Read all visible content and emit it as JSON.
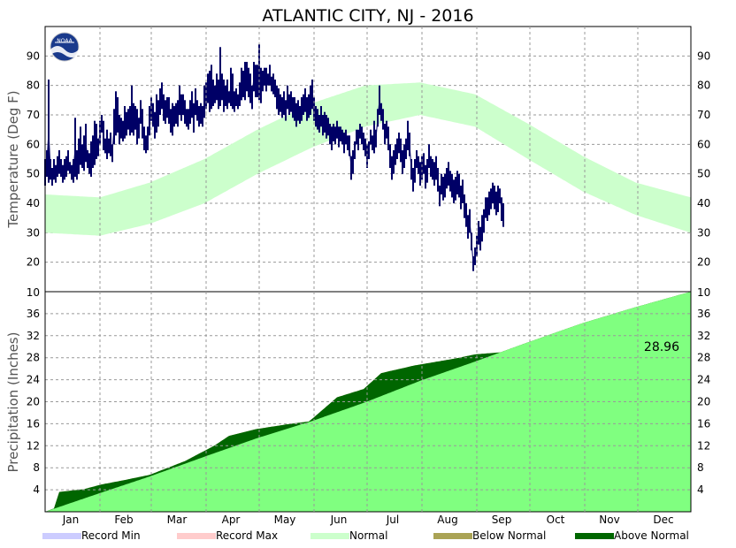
{
  "chart_data": {
    "title": "ATLANTIC CITY, NJ - 2016",
    "type": "line",
    "months": [
      "Jan",
      "Feb",
      "Mar",
      "Apr",
      "May",
      "Jun",
      "Jul",
      "Aug",
      "Sep",
      "Oct",
      "Nov",
      "Dec"
    ],
    "month_days": [
      31,
      29,
      31,
      30,
      31,
      30,
      31,
      31,
      30,
      31,
      30,
      31
    ],
    "colors": {
      "record_min": "#ccccff",
      "record_max": "#ffcccc",
      "normal": "#ccffcc",
      "below_normal": "#aaa355",
      "above_normal": "#006600",
      "observed_temp": "#000066",
      "precip_normal_fill": "#80ff80",
      "grid": "#999999"
    },
    "temperature_panel": {
      "ylabel": "Temperature (Deg F)",
      "ylim": [
        10,
        100
      ],
      "yticks": [
        20,
        30,
        40,
        50,
        60,
        70,
        80,
        90
      ],
      "normal_band": {
        "doy": [
          1,
          32,
          60,
          91,
          121,
          152,
          182,
          213,
          244,
          274,
          305,
          335,
          366
        ],
        "low": [
          30,
          29,
          33,
          40,
          50,
          59,
          66,
          70,
          66,
          55,
          44,
          36,
          30
        ],
        "high": [
          43,
          42,
          47,
          55,
          65,
          74,
          80,
          81,
          77,
          67,
          56,
          47,
          42
        ]
      },
      "observed_daily_range": [
        [
          1,
          46,
          55
        ],
        [
          2,
          49,
          58
        ],
        [
          3,
          47,
          82
        ],
        [
          4,
          48,
          55
        ],
        [
          5,
          46,
          52
        ],
        [
          6,
          48,
          55
        ],
        [
          7,
          47,
          53
        ],
        [
          8,
          49,
          56
        ],
        [
          9,
          50,
          58
        ],
        [
          10,
          49,
          55
        ],
        [
          11,
          47,
          53
        ],
        [
          12,
          48,
          55
        ],
        [
          13,
          49,
          56
        ],
        [
          14,
          51,
          58
        ],
        [
          15,
          50,
          54
        ],
        [
          16,
          48,
          53
        ],
        [
          17,
          47,
          55
        ],
        [
          18,
          49,
          69
        ],
        [
          19,
          48,
          58
        ],
        [
          20,
          50,
          62
        ],
        [
          21,
          53,
          66
        ],
        [
          22,
          52,
          60
        ],
        [
          23,
          51,
          63
        ],
        [
          24,
          54,
          67
        ],
        [
          25,
          52,
          58
        ],
        [
          26,
          50,
          57
        ],
        [
          27,
          49,
          61
        ],
        [
          28,
          52,
          63
        ],
        [
          29,
          53,
          68
        ],
        [
          30,
          55,
          67
        ],
        [
          31,
          56,
          62
        ],
        [
          32,
          60,
          68
        ],
        [
          33,
          64,
          70
        ],
        [
          34,
          58,
          68
        ],
        [
          35,
          57,
          62
        ],
        [
          36,
          55,
          65
        ],
        [
          37,
          57,
          62
        ],
        [
          38,
          56,
          64
        ],
        [
          39,
          54,
          60
        ],
        [
          40,
          60,
          72
        ],
        [
          41,
          63,
          78
        ],
        [
          42,
          64,
          76
        ],
        [
          43,
          60,
          70
        ],
        [
          44,
          62,
          69
        ],
        [
          45,
          61,
          68
        ],
        [
          46,
          62,
          73
        ],
        [
          47,
          63,
          71
        ],
        [
          48,
          65,
          72
        ],
        [
          49,
          63,
          73
        ],
        [
          50,
          64,
          80
        ],
        [
          51,
          63,
          74
        ],
        [
          52,
          65,
          73
        ],
        [
          53,
          60,
          72
        ],
        [
          54,
          62,
          69
        ],
        [
          55,
          67,
          75
        ],
        [
          56,
          62,
          72
        ],
        [
          57,
          58,
          66
        ],
        [
          58,
          57,
          63
        ],
        [
          59,
          58,
          66
        ],
        [
          60,
          63,
          73
        ],
        [
          61,
          68,
          76
        ],
        [
          62,
          66,
          74
        ],
        [
          63,
          62,
          71
        ],
        [
          64,
          64,
          77
        ],
        [
          65,
          66,
          75
        ],
        [
          66,
          70,
          79
        ],
        [
          67,
          72,
          81
        ],
        [
          68,
          68,
          77
        ],
        [
          69,
          67,
          75
        ],
        [
          70,
          69,
          76
        ],
        [
          71,
          67,
          76
        ],
        [
          72,
          64,
          72
        ],
        [
          73,
          63,
          74
        ],
        [
          74,
          66,
          73
        ],
        [
          75,
          67,
          74
        ],
        [
          76,
          66,
          75
        ],
        [
          77,
          70,
          80
        ],
        [
          78,
          68,
          77
        ],
        [
          79,
          70,
          77
        ],
        [
          80,
          67,
          75
        ],
        [
          81,
          66,
          72
        ],
        [
          82,
          65,
          72
        ],
        [
          83,
          67,
          75
        ],
        [
          84,
          69,
          78
        ],
        [
          85,
          64,
          74
        ],
        [
          86,
          70,
          79
        ],
        [
          87,
          68,
          75
        ],
        [
          88,
          66,
          73
        ],
        [
          89,
          67,
          74
        ],
        [
          90,
          66,
          73
        ],
        [
          91,
          69,
          80
        ],
        [
          92,
          72,
          81
        ],
        [
          93,
          74,
          84
        ],
        [
          94,
          71,
          85
        ],
        [
          95,
          72,
          87
        ],
        [
          96,
          73,
          82
        ],
        [
          97,
          74,
          80
        ],
        [
          98,
          75,
          84
        ],
        [
          99,
          72,
          82
        ],
        [
          100,
          73,
          93
        ],
        [
          101,
          75,
          84
        ],
        [
          102,
          71,
          82
        ],
        [
          103,
          73,
          80
        ],
        [
          104,
          72,
          82
        ],
        [
          105,
          74,
          78
        ],
        [
          106,
          73,
          86
        ],
        [
          107,
          72,
          84
        ],
        [
          108,
          71,
          78
        ],
        [
          109,
          73,
          79
        ],
        [
          110,
          72,
          77
        ],
        [
          111,
          73,
          81
        ],
        [
          112,
          75,
          86
        ],
        [
          113,
          76,
          85
        ],
        [
          114,
          75,
          88
        ],
        [
          115,
          78,
          88
        ],
        [
          116,
          76,
          86
        ],
        [
          117,
          74,
          84
        ],
        [
          118,
          72,
          80
        ],
        [
          119,
          78,
          88
        ],
        [
          120,
          76,
          87
        ],
        [
          121,
          76,
          87
        ],
        [
          122,
          75,
          94
        ],
        [
          123,
          74,
          86
        ],
        [
          124,
          78,
          85
        ],
        [
          125,
          80,
          86
        ],
        [
          126,
          78,
          86
        ],
        [
          127,
          80,
          84
        ],
        [
          128,
          80,
          87
        ],
        [
          129,
          78,
          83
        ],
        [
          130,
          77,
          84
        ],
        [
          131,
          76,
          82
        ],
        [
          132,
          72,
          80
        ],
        [
          133,
          70,
          79
        ],
        [
          134,
          71,
          77
        ],
        [
          135,
          69,
          76
        ],
        [
          136,
          70,
          78
        ],
        [
          137,
          68,
          75
        ],
        [
          138,
          72,
          80
        ],
        [
          139,
          70,
          77
        ],
        [
          140,
          71,
          78
        ],
        [
          141,
          69,
          76
        ],
        [
          142,
          68,
          76
        ],
        [
          143,
          66,
          74
        ],
        [
          144,
          68,
          75
        ],
        [
          145,
          67,
          73
        ],
        [
          146,
          68,
          76
        ],
        [
          147,
          70,
          77
        ],
        [
          148,
          71,
          79
        ],
        [
          149,
          68,
          76
        ],
        [
          150,
          69,
          77
        ],
        [
          151,
          70,
          80
        ],
        [
          152,
          72,
          82
        ],
        [
          153,
          68,
          76
        ],
        [
          154,
          66,
          73
        ],
        [
          155,
          65,
          72
        ],
        [
          156,
          64,
          70
        ],
        [
          157,
          66,
          73
        ],
        [
          158,
          63,
          70
        ],
        [
          159,
          64,
          71
        ],
        [
          160,
          62,
          70
        ],
        [
          161,
          63,
          69
        ],
        [
          162,
          60,
          67
        ],
        [
          163,
          58,
          66
        ],
        [
          164,
          61,
          67
        ],
        [
          165,
          60,
          66
        ],
        [
          166,
          62,
          68
        ],
        [
          167,
          59,
          66
        ],
        [
          168,
          61,
          66
        ],
        [
          169,
          60,
          65
        ],
        [
          170,
          57,
          64
        ],
        [
          171,
          60,
          65
        ],
        [
          172,
          58,
          63
        ],
        [
          173,
          56,
          63
        ],
        [
          174,
          48,
          56
        ],
        [
          175,
          50,
          58
        ],
        [
          176,
          55,
          61
        ],
        [
          177,
          60,
          65
        ],
        [
          178,
          58,
          65
        ],
        [
          179,
          62,
          67
        ],
        [
          180,
          60,
          66
        ],
        [
          181,
          58,
          64
        ],
        [
          182,
          56,
          62
        ],
        [
          183,
          52,
          60
        ],
        [
          184,
          55,
          61
        ],
        [
          185,
          60,
          65
        ],
        [
          186,
          58,
          63
        ],
        [
          187,
          57,
          68
        ],
        [
          188,
          59,
          65
        ],
        [
          189,
          66,
          72
        ],
        [
          190,
          70,
          80
        ],
        [
          191,
          68,
          74
        ],
        [
          192,
          65,
          72
        ],
        [
          193,
          60,
          67
        ],
        [
          194,
          62,
          68
        ],
        [
          195,
          58,
          66
        ],
        [
          196,
          52,
          60
        ],
        [
          197,
          48,
          56
        ],
        [
          198,
          50,
          58
        ],
        [
          199,
          53,
          60
        ],
        [
          200,
          55,
          62
        ],
        [
          201,
          57,
          64
        ],
        [
          202,
          54,
          62
        ],
        [
          203,
          50,
          58
        ],
        [
          204,
          52,
          60
        ],
        [
          205,
          55,
          62
        ],
        [
          206,
          58,
          68
        ],
        [
          207,
          56,
          64
        ],
        [
          208,
          48,
          55
        ],
        [
          209,
          44,
          52
        ],
        [
          210,
          47,
          55
        ],
        [
          211,
          52,
          58
        ],
        [
          212,
          50,
          56
        ],
        [
          213,
          46,
          54
        ],
        [
          214,
          48,
          56
        ],
        [
          215,
          50,
          57
        ],
        [
          216,
          45,
          53
        ],
        [
          217,
          47,
          55
        ],
        [
          218,
          52,
          60
        ],
        [
          219,
          49,
          56
        ],
        [
          220,
          48,
          55
        ],
        [
          221,
          46,
          54
        ],
        [
          222,
          48,
          56
        ],
        [
          223,
          44,
          52
        ],
        [
          224,
          39,
          46
        ],
        [
          225,
          43,
          50
        ],
        [
          226,
          41,
          49
        ],
        [
          227,
          42,
          50
        ],
        [
          228,
          45,
          52
        ],
        [
          229,
          46,
          54
        ],
        [
          230,
          44,
          51
        ],
        [
          231,
          42,
          50
        ],
        [
          232,
          40,
          48
        ],
        [
          233,
          41,
          49
        ],
        [
          234,
          43,
          51
        ],
        [
          235,
          42,
          50
        ],
        [
          236,
          38,
          46
        ],
        [
          237,
          40,
          48
        ],
        [
          238,
          35,
          43
        ],
        [
          239,
          32,
          40
        ],
        [
          240,
          28,
          36
        ],
        [
          241,
          30,
          38
        ],
        [
          242,
          24,
          30
        ],
        [
          243,
          17,
          22
        ],
        [
          244,
          19,
          25
        ],
        [
          245,
          22,
          29
        ],
        [
          246,
          26,
          34
        ],
        [
          247,
          24,
          32
        ],
        [
          248,
          27,
          36
        ],
        [
          249,
          30,
          38
        ],
        [
          250,
          35,
          42
        ],
        [
          251,
          34,
          42
        ],
        [
          252,
          36,
          44
        ],
        [
          253,
          38,
          45
        ],
        [
          254,
          40,
          47
        ],
        [
          255,
          38,
          46
        ],
        [
          256,
          36,
          44
        ],
        [
          257,
          37,
          46
        ],
        [
          258,
          40,
          45
        ],
        [
          259,
          34,
          42
        ],
        [
          260,
          32,
          40
        ]
      ]
    },
    "precip_panel": {
      "ylabel": "Precipitation (Inches)",
      "ylim": [
        0,
        40
      ],
      "yticks": [
        4,
        8,
        12,
        16,
        20,
        24,
        28,
        32,
        36
      ],
      "top_label": "10",
      "normal_cumulative": {
        "doy": [
          1,
          32,
          60,
          91,
          121,
          152,
          182,
          213,
          244,
          274,
          305,
          335,
          366
        ],
        "value": [
          0,
          3.4,
          6.4,
          10.0,
          13.4,
          16.5,
          19.9,
          23.8,
          27.3,
          30.8,
          34.3,
          37.2,
          40.0
        ]
      },
      "observed_cumulative": {
        "doy": [
          1,
          6,
          9,
          23,
          32,
          45,
          60,
          80,
          96,
          98,
          105,
          120,
          140,
          150,
          152,
          166,
          181,
          191,
          210,
          232,
          244,
          258,
          260,
          366
        ],
        "value": [
          0,
          0.6,
          3.6,
          4.1,
          4.9,
          5.7,
          6.7,
          9.2,
          11.9,
          12.3,
          13.8,
          15.0,
          16.0,
          16.4,
          16.9,
          20.8,
          22.3,
          25.2,
          26.6,
          27.8,
          28.6,
          28.96,
          28.96,
          28.96
        ]
      },
      "current_total_label": "28.96"
    },
    "legend": [
      {
        "label": "Record Min",
        "color": "#ccccff"
      },
      {
        "label": "Record Max",
        "color": "#ffcccc"
      },
      {
        "label": "Normal",
        "color": "#ccffcc"
      },
      {
        "label": "Below Normal",
        "color": "#aaa355"
      },
      {
        "label": "Above Normal",
        "color": "#006600"
      }
    ]
  }
}
